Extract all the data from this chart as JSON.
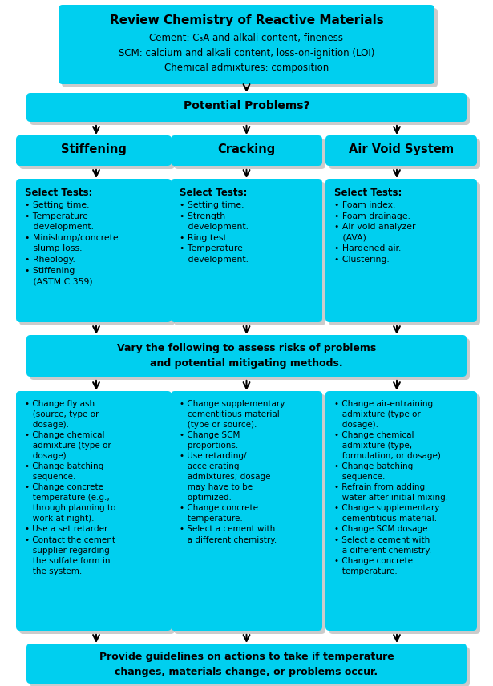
{
  "bg_color": "#ffffff",
  "box_color": "#00CFEF",
  "shadow_color": "#999999",
  "text_color": "#000000",
  "arrow_color": "#000000",
  "fig_width": 6.15,
  "fig_height": 8.56,
  "top_box": {
    "title": "Review Chemistry of Reactive Materials",
    "lines": [
      "Cement: C₃A and alkali content, fineness",
      "SCM: calcium and alkali content, loss-on-ignition (LOI)",
      "Chemical admixtures: composition"
    ]
  },
  "potential_box_text": "Potential Problems?",
  "col_headers": [
    "Stiffening",
    "Cracking",
    "Air Void System"
  ],
  "select_tests_body": {
    "Stiffening": "• Setting time.\n• Temperature\n   development.\n• Minislump/concrete\n   slump loss.\n• Rheology.\n• Stiffening\n   (ASTM C 359).",
    "Cracking": "• Setting time.\n• Strength\n   development.\n• Ring test.\n• Temperature\n   development.",
    "Air Void System": "• Foam index.\n• Foam drainage.\n• Air void analyzer\n   (AVA).\n• Hardened air.\n• Clustering."
  },
  "vary_box_text": "Vary the following to assess risks of problems\nand potential mitigating methods.",
  "mitigation": {
    "Stiffening": "• Change fly ash\n   (source, type or\n   dosage).\n• Change chemical\n   admixture (type or\n   dosage).\n• Change batching\n   sequence.\n• Change concrete\n   temperature (e.g.,\n   through planning to\n   work at night).\n• Use a set retarder.\n• Contact the cement\n   supplier regarding\n   the sulfate form in\n   the system.",
    "Cracking": "• Change supplementary\n   cementitious material\n   (type or source).\n• Change SCM\n   proportions.\n• Use retarding/\n   accelerating\n   admixtures; dosage\n   may have to be\n   optimized.\n• Change concrete\n   temperature.\n• Select a cement with\n   a different chemistry.",
    "Air Void System": "• Change air-entraining\n   admixture (type or\n   dosage).\n• Change chemical\n   admixture (type,\n   formulation, or dosage).\n• Change batching\n   sequence.\n• Refrain from adding\n   water after initial mixing.\n• Change supplementary\n   cementitious material.\n• Change SCM dosage.\n• Select a cement with\n   a different chemistry.\n• Change concrete\n   temperature."
  },
  "final_box_text": "Provide guidelines on actions to take if temperature\nchanges, materials change, or problems occur."
}
